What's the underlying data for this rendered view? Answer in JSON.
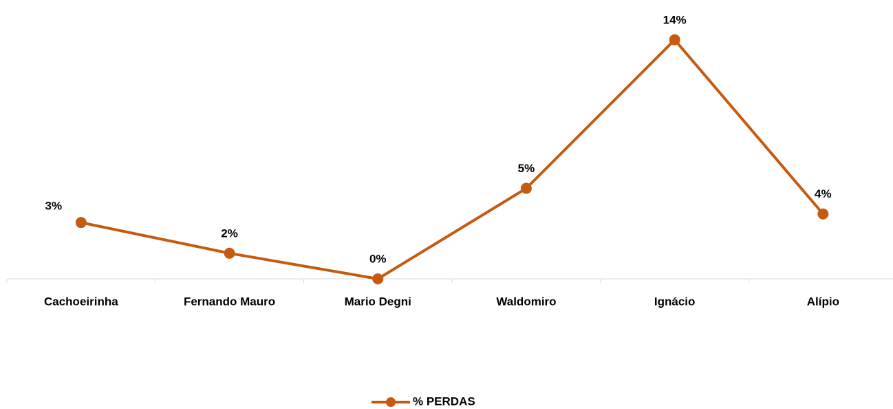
{
  "chart_data": {
    "type": "line",
    "categories": [
      "Cachoeirinha",
      "Fernando Mauro",
      "Mario Degni",
      "Waldomiro",
      "Ignácio",
      "Alípio"
    ],
    "series": [
      {
        "name": "% PERDAS",
        "color": "#c55a11",
        "values": [
          3.3,
          1.5,
          0,
          5.3,
          14,
          3.8
        ],
        "value_labels": [
          "3%",
          "2%",
          "0%",
          "5%",
          "14%",
          "4%"
        ]
      }
    ],
    "ylim": [
      0,
      15
    ],
    "legend": "bottom"
  }
}
